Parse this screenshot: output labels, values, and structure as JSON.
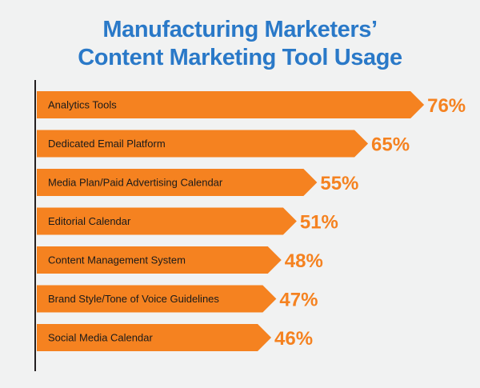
{
  "chart_data": {
    "type": "bar",
    "orientation": "horizontal",
    "title_line1": "Manufacturing Marketers’",
    "title_line2": "Content Marketing Tool Usage",
    "categories": [
      "Analytics Tools",
      "Dedicated Email Platform",
      "Media Plan/Paid Advertising Calendar",
      "Editorial Calendar",
      "Content Management System",
      "Brand Style/Tone of Voice Guidelines",
      "Social Media Calendar"
    ],
    "values": [
      76,
      65,
      55,
      51,
      48,
      47,
      46
    ],
    "value_labels": [
      "76%",
      "65%",
      "55%",
      "51%",
      "48%",
      "47%",
      "46%"
    ],
    "xlim": [
      0,
      100
    ],
    "grid": false,
    "colors": {
      "bar": "#f58220",
      "bar_text": "#1a1a1a",
      "value_label": "#f58220",
      "title": "#2a79c8",
      "axis": "#231f20",
      "background": "#f1f2f2"
    }
  }
}
